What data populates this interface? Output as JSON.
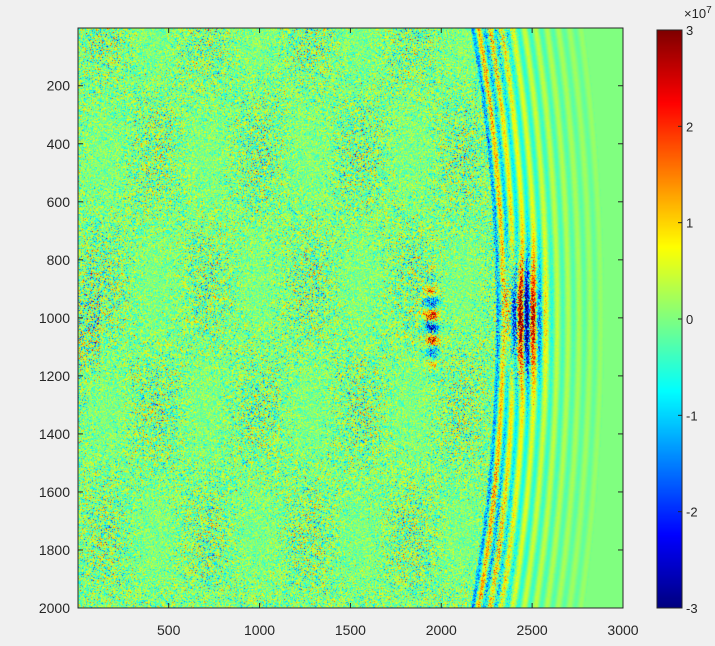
{
  "chart_data": {
    "type": "heatmap",
    "title": "",
    "xlabel": "",
    "ylabel": "",
    "xlim": [
      1,
      3000
    ],
    "ylim": [
      1,
      2000
    ],
    "y_reversed": true,
    "x_ticks": [
      500,
      1000,
      1500,
      2000,
      2500,
      3000
    ],
    "x_tick_labels": [
      "500",
      "1000",
      "1500",
      "2000",
      "2500",
      "3000"
    ],
    "y_ticks": [
      200,
      400,
      600,
      800,
      1000,
      1200,
      1400,
      1600,
      1800,
      2000
    ],
    "y_tick_labels": [
      "200",
      "400",
      "600",
      "800",
      "1000",
      "1200",
      "1400",
      "1600",
      "1800",
      "2000"
    ],
    "colormap": "jet",
    "colorbar": {
      "position": "right",
      "clim": [
        -3,
        3
      ],
      "ticks": [
        3,
        2,
        1,
        0,
        -1,
        -2,
        -3
      ],
      "tick_labels": [
        "3",
        "2",
        "1",
        "0",
        "-1",
        "-2",
        "-3"
      ],
      "exponent_base": "×10",
      "exponent_power": "7"
    },
    "features": {
      "noise_region_x_max": 2300,
      "wavefront_arc_center": [
        0,
        1000
      ],
      "wavefront_radius_inner": 2300,
      "wavefront_radius_outer": 2900,
      "hotspot_primary": {
        "x": 2450,
        "y": 1000,
        "amplitude": 3
      },
      "hotspot_secondary": {
        "x": 1950,
        "y": 1020,
        "amplitude": 2
      },
      "background_value": 0
    }
  },
  "colors": {
    "figure_background": "#f0f0f0",
    "axes_border": "#262626",
    "background_field": "#80ff80"
  }
}
